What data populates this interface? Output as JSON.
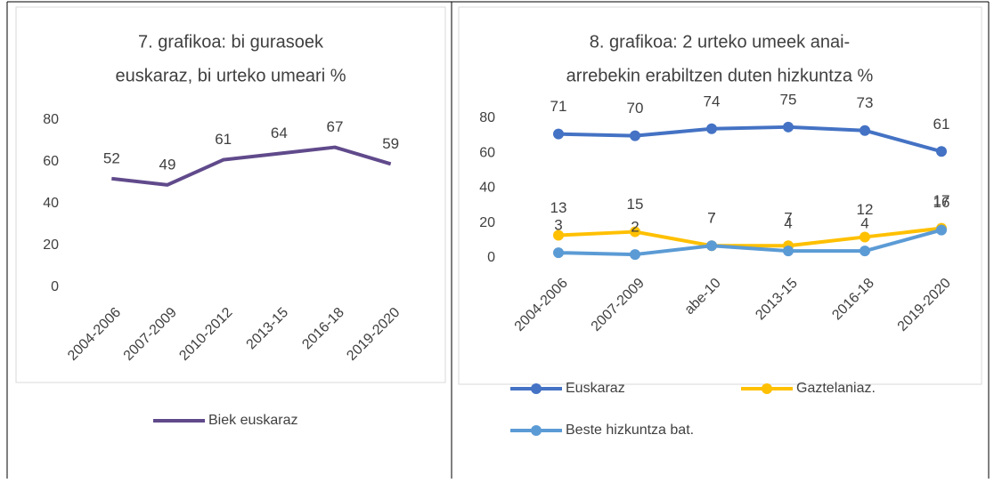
{
  "chart_data": [
    {
      "type": "line",
      "title": [
        "7. grafikoa: bi gurasoek",
        "euskaraz, bi urteko umeari %"
      ],
      "categories": [
        "2004-2006",
        "2007-2009",
        "2010-2012",
        "2013-15",
        "2016-18",
        "2019-2020"
      ],
      "series": [
        {
          "name": "Biek euskaraz",
          "color": "#604a8b",
          "values": [
            52,
            49,
            61,
            64,
            67,
            59
          ]
        }
      ],
      "ylim": [
        0,
        80
      ],
      "yticks": [
        0,
        20,
        40,
        60,
        80
      ],
      "markers": false,
      "data_labels": true,
      "legend": "bottom"
    },
    {
      "type": "line",
      "title": [
        "8. grafikoa: 2 urteko umeek anai-",
        "arrebekin erabiltzen duten hizkuntza %"
      ],
      "categories": [
        "2004-2006",
        "2007-2009",
        "abe-10",
        "2013-15",
        "2016-18",
        "2019-2020"
      ],
      "series": [
        {
          "name": "Euskaraz",
          "color": "#4472c4",
          "values": [
            71,
            70,
            74,
            75,
            73,
            61
          ]
        },
        {
          "name": "Gaztelaniaz.",
          "color": "#ffc000",
          "values": [
            13,
            15,
            7,
            7,
            12,
            17
          ]
        },
        {
          "name": "Beste hizkuntza bat.",
          "color": "#5b9bd5",
          "values": [
            3,
            2,
            7,
            4,
            4,
            16
          ]
        }
      ],
      "ylim": [
        0,
        80
      ],
      "yticks": [
        0,
        20,
        40,
        60,
        80
      ],
      "markers": true,
      "data_labels": true,
      "legend": "bottom"
    }
  ]
}
